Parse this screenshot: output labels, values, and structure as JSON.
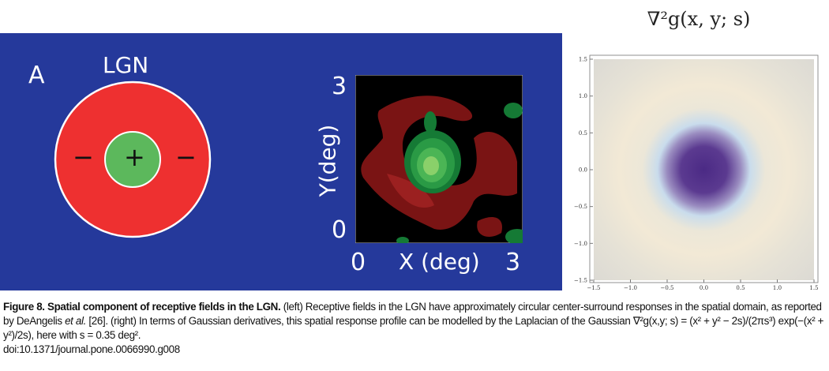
{
  "panel_a": {
    "label": "A",
    "title": "LGN",
    "center_sign": "+",
    "surround_sign_left": "−",
    "surround_sign_right": "−",
    "colors": {
      "background": "#25399b",
      "surround": "#ee3030",
      "center": "#5cb85c"
    },
    "map": {
      "y_label": "Y(deg)",
      "x_label": "X (deg)",
      "x_min": "0",
      "x_max": "3",
      "y_min": "0",
      "y_max": "3"
    }
  },
  "panel_right": {
    "title": "∇²g(x, y; s)",
    "x_ticks": [
      "−1.5",
      "−1.0",
      "−0.5",
      "0.0",
      "0.5",
      "1.0",
      "1.5"
    ],
    "y_ticks": [
      "1.5",
      "1.0",
      "0.5",
      "0.0",
      "−0.5",
      "−1.0",
      "−1.5"
    ],
    "colors": {
      "center": "#4b2a85",
      "ring": "#c9dcec",
      "background": "#efe8d8"
    }
  },
  "caption": {
    "figure_label": "Figure 8. Spatial component of receptive fields in the LGN.",
    "text_1": " (left) Receptive fields in the LGN have approximately circular center-surround responses in the spatial domain, as reported by DeAngelis ",
    "et_al": "et al.",
    "text_2": " [26]. (right) In terms of Gaussian derivatives, this spatial response profile can be modelled by the Laplacian of the Gaussian ∇²g(x,y; s) = (x² + y² − 2s)/(2πs³) exp(−(x² + y²)/2s), here with s = 0.35 deg².",
    "doi": "doi:10.1371/journal.pone.0066990.g008"
  }
}
